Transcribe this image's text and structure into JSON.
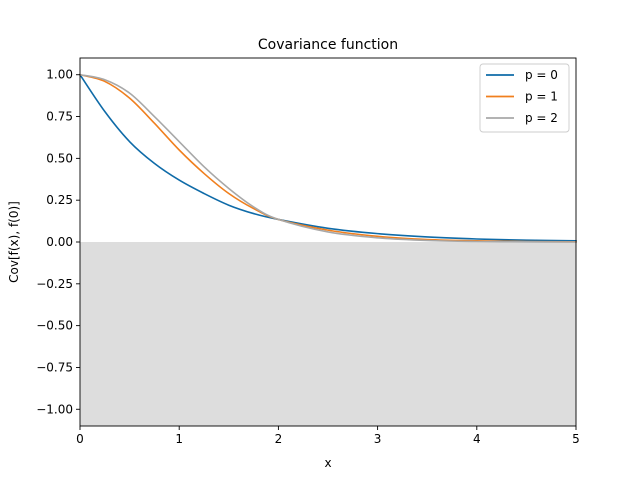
{
  "chart_data": {
    "type": "line",
    "title": "Covariance function",
    "xlabel": "x",
    "ylabel": "Cov[f(x), f(0)]",
    "xlim": [
      0,
      5
    ],
    "ylim": [
      -1.1,
      1.1
    ],
    "xticks": [
      0,
      1,
      2,
      3,
      4,
      5
    ],
    "xtick_labels": [
      "0",
      "1",
      "2",
      "3",
      "4",
      "5"
    ],
    "yticks": [
      -1.0,
      -0.75,
      -0.5,
      -0.25,
      0.0,
      0.25,
      0.5,
      0.75,
      1.0
    ],
    "ytick_labels": [
      "−1.00",
      "−0.75",
      "−0.50",
      "−0.25",
      "0.00",
      "0.25",
      "0.50",
      "0.75",
      "1.00"
    ],
    "grid": false,
    "legend_position": "top-right",
    "shaded_region": {
      "y_from": -1.1,
      "y_to": 0.0,
      "color": "#dddddd"
    },
    "x": [
      0,
      0.25,
      0.5,
      0.75,
      1.0,
      1.25,
      1.5,
      1.75,
      2.0,
      2.5,
      3.0,
      3.5,
      4.0,
      4.5,
      5.0
    ],
    "series": [
      {
        "name": "p = 0",
        "color": "#0f6ba8",
        "values": [
          1.0,
          0.78,
          0.6,
          0.47,
          0.37,
          0.29,
          0.22,
          0.17,
          0.135,
          0.082,
          0.05,
          0.03,
          0.018,
          0.011,
          0.007
        ]
      },
      {
        "name": "p = 1",
        "color": "#f07f1e",
        "values": [
          1.0,
          0.96,
          0.86,
          0.71,
          0.55,
          0.41,
          0.29,
          0.2,
          0.135,
          0.071,
          0.034,
          0.015,
          0.007,
          0.003,
          0.001
        ]
      },
      {
        "name": "p = 2",
        "color": "#a8a8a8",
        "values": [
          1.0,
          0.97,
          0.89,
          0.75,
          0.6,
          0.45,
          0.32,
          0.21,
          0.135,
          0.06,
          0.025,
          0.009,
          0.003,
          0.001,
          0.0
        ]
      }
    ]
  }
}
